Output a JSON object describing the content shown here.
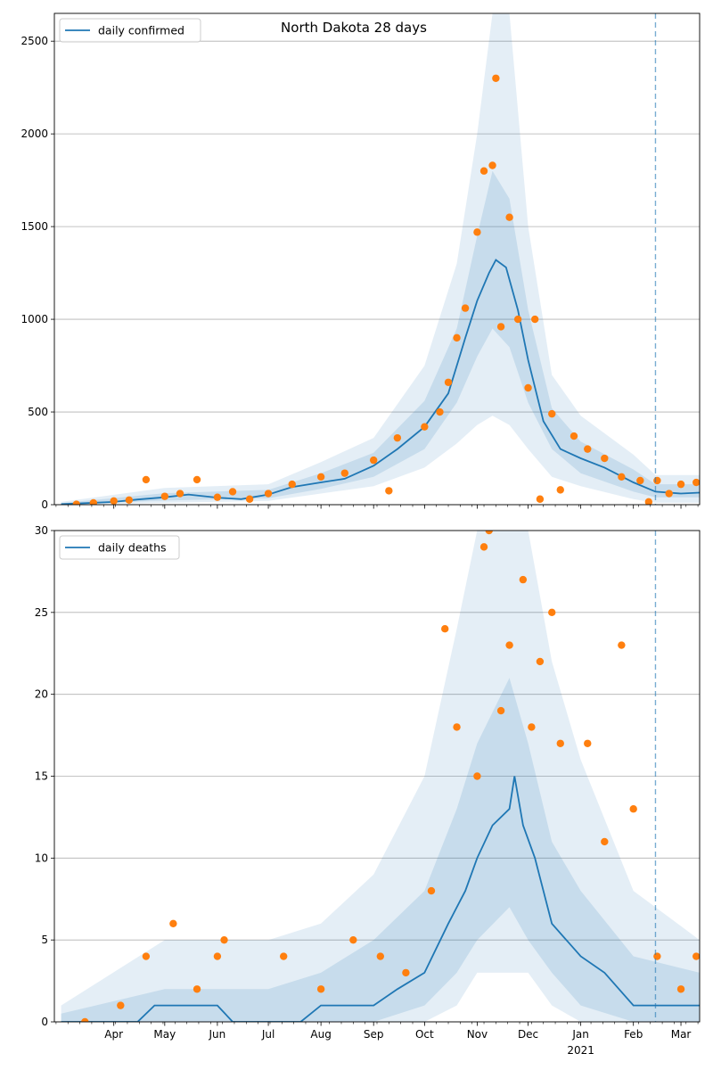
{
  "title": "North Dakota 28 days",
  "colors": {
    "model_line": "#1f77b4",
    "observed_points": "#ff7f0e",
    "band": "#1f77b4",
    "grid": "#b0b0b0",
    "today_line": "#1f77b4"
  },
  "x_axis": {
    "range": [
      "2020-02-26",
      "2021-03-12"
    ],
    "month_ticks": [
      {
        "label": "Apr",
        "date": "2020-04-01"
      },
      {
        "label": "May",
        "date": "2020-05-01"
      },
      {
        "label": "Jun",
        "date": "2020-06-01"
      },
      {
        "label": "Jul",
        "date": "2020-07-01"
      },
      {
        "label": "Aug",
        "date": "2020-08-01"
      },
      {
        "label": "Sep",
        "date": "2020-09-01"
      },
      {
        "label": "Oct",
        "date": "2020-10-01"
      },
      {
        "label": "Nov",
        "date": "2020-11-01"
      },
      {
        "label": "Dec",
        "date": "2020-12-01"
      },
      {
        "label": "Jan",
        "date": "2021-01-01"
      },
      {
        "label": "Feb",
        "date": "2021-02-01"
      },
      {
        "label": "Mar",
        "date": "2021-03-01"
      }
    ],
    "year_label": "2021",
    "minor_ticks": "weekly",
    "vline_date": "2021-02-14"
  },
  "chart_data": [
    {
      "type": "line",
      "panel": "top",
      "legend": {
        "label": "daily confirmed",
        "position": "top-left"
      },
      "ylim": [
        0,
        2650
      ],
      "yticks": [
        0,
        500,
        1000,
        1500,
        2000,
        2500
      ],
      "grid": "horizontal",
      "model_series": [
        {
          "date": "2020-03-01",
          "value": 3
        },
        {
          "date": "2020-03-15",
          "value": 8
        },
        {
          "date": "2020-04-01",
          "value": 15
        },
        {
          "date": "2020-04-15",
          "value": 28
        },
        {
          "date": "2020-05-01",
          "value": 40
        },
        {
          "date": "2020-05-15",
          "value": 55
        },
        {
          "date": "2020-06-01",
          "value": 38
        },
        {
          "date": "2020-06-15",
          "value": 30
        },
        {
          "date": "2020-07-01",
          "value": 55
        },
        {
          "date": "2020-07-15",
          "value": 95
        },
        {
          "date": "2020-08-01",
          "value": 120
        },
        {
          "date": "2020-08-15",
          "value": 140
        },
        {
          "date": "2020-09-01",
          "value": 210
        },
        {
          "date": "2020-09-15",
          "value": 300
        },
        {
          "date": "2020-10-01",
          "value": 420
        },
        {
          "date": "2020-10-15",
          "value": 600
        },
        {
          "date": "2020-10-25",
          "value": 900
        },
        {
          "date": "2020-11-01",
          "value": 1100
        },
        {
          "date": "2020-11-08",
          "value": 1250
        },
        {
          "date": "2020-11-12",
          "value": 1320
        },
        {
          "date": "2020-11-18",
          "value": 1280
        },
        {
          "date": "2020-11-25",
          "value": 1050
        },
        {
          "date": "2020-12-01",
          "value": 780
        },
        {
          "date": "2020-12-10",
          "value": 450
        },
        {
          "date": "2020-12-20",
          "value": 300
        },
        {
          "date": "2021-01-01",
          "value": 250
        },
        {
          "date": "2021-01-15",
          "value": 200
        },
        {
          "date": "2021-02-01",
          "value": 120
        },
        {
          "date": "2021-02-14",
          "value": 70
        },
        {
          "date": "2021-03-01",
          "value": 60
        },
        {
          "date": "2021-03-12",
          "value": 65
        }
      ],
      "observed": [
        {
          "date": "2020-03-10",
          "value": 2
        },
        {
          "date": "2020-03-20",
          "value": 10
        },
        {
          "date": "2020-04-01",
          "value": 20
        },
        {
          "date": "2020-04-10",
          "value": 25
        },
        {
          "date": "2020-04-20",
          "value": 135
        },
        {
          "date": "2020-05-01",
          "value": 45
        },
        {
          "date": "2020-05-10",
          "value": 60
        },
        {
          "date": "2020-05-20",
          "value": 135
        },
        {
          "date": "2020-06-01",
          "value": 40
        },
        {
          "date": "2020-06-10",
          "value": 70
        },
        {
          "date": "2020-06-20",
          "value": 30
        },
        {
          "date": "2020-07-01",
          "value": 60
        },
        {
          "date": "2020-07-15",
          "value": 110
        },
        {
          "date": "2020-08-01",
          "value": 150
        },
        {
          "date": "2020-08-15",
          "value": 170
        },
        {
          "date": "2020-09-01",
          "value": 240
        },
        {
          "date": "2020-09-10",
          "value": 75
        },
        {
          "date": "2020-09-15",
          "value": 360
        },
        {
          "date": "2020-10-01",
          "value": 420
        },
        {
          "date": "2020-10-10",
          "value": 500
        },
        {
          "date": "2020-10-15",
          "value": 660
        },
        {
          "date": "2020-10-20",
          "value": 900
        },
        {
          "date": "2020-10-25",
          "value": 1060
        },
        {
          "date": "2020-11-01",
          "value": 1470
        },
        {
          "date": "2020-11-05",
          "value": 1800
        },
        {
          "date": "2020-11-10",
          "value": 1830
        },
        {
          "date": "2020-11-12",
          "value": 2300
        },
        {
          "date": "2020-11-15",
          "value": 960
        },
        {
          "date": "2020-11-20",
          "value": 1550
        },
        {
          "date": "2020-11-25",
          "value": 1000
        },
        {
          "date": "2020-12-01",
          "value": 630
        },
        {
          "date": "2020-12-05",
          "value": 1000
        },
        {
          "date": "2020-12-08",
          "value": 30
        },
        {
          "date": "2020-12-15",
          "value": 490
        },
        {
          "date": "2020-12-20",
          "value": 80
        },
        {
          "date": "2020-12-28",
          "value": 370
        },
        {
          "date": "2021-01-05",
          "value": 300
        },
        {
          "date": "2021-01-15",
          "value": 250
        },
        {
          "date": "2021-01-25",
          "value": 150
        },
        {
          "date": "2021-02-05",
          "value": 130
        },
        {
          "date": "2021-02-10",
          "value": 15
        },
        {
          "date": "2021-02-15",
          "value": 130
        },
        {
          "date": "2021-02-22",
          "value": 60
        },
        {
          "date": "2021-03-01",
          "value": 110
        },
        {
          "date": "2021-03-10",
          "value": 120
        }
      ],
      "bands": [
        {
          "name": "outer",
          "points": [
            {
              "date": "2020-03-01",
              "lo": 0,
              "hi": 15
            },
            {
              "date": "2020-05-01",
              "lo": 10,
              "hi": 90
            },
            {
              "date": "2020-07-01",
              "lo": 20,
              "hi": 110
            },
            {
              "date": "2020-08-01",
              "lo": 60,
              "hi": 230
            },
            {
              "date": "2020-09-01",
              "lo": 100,
              "hi": 360
            },
            {
              "date": "2020-10-01",
              "lo": 200,
              "hi": 750
            },
            {
              "date": "2020-10-20",
              "lo": 330,
              "hi": 1300
            },
            {
              "date": "2020-11-01",
              "lo": 430,
              "hi": 2000
            },
            {
              "date": "2020-11-10",
              "lo": 480,
              "hi": 2650
            },
            {
              "date": "2020-11-20",
              "lo": 430,
              "hi": 2650
            },
            {
              "date": "2020-12-01",
              "lo": 300,
              "hi": 1500
            },
            {
              "date": "2020-12-15",
              "lo": 150,
              "hi": 700
            },
            {
              "date": "2021-01-01",
              "lo": 100,
              "hi": 480
            },
            {
              "date": "2021-02-01",
              "lo": 30,
              "hi": 270
            },
            {
              "date": "2021-02-14",
              "lo": 10,
              "hi": 160
            },
            {
              "date": "2021-03-12",
              "lo": 10,
              "hi": 160
            }
          ]
        },
        {
          "name": "inner",
          "points": [
            {
              "date": "2020-03-01",
              "lo": 1,
              "hi": 8
            },
            {
              "date": "2020-05-01",
              "lo": 22,
              "hi": 62
            },
            {
              "date": "2020-07-01",
              "lo": 35,
              "hi": 80
            },
            {
              "date": "2020-08-01",
              "lo": 85,
              "hi": 170
            },
            {
              "date": "2020-09-01",
              "lo": 150,
              "hi": 280
            },
            {
              "date": "2020-10-01",
              "lo": 300,
              "hi": 560
            },
            {
              "date": "2020-10-20",
              "lo": 550,
              "hi": 950
            },
            {
              "date": "2020-11-01",
              "lo": 800,
              "hi": 1450
            },
            {
              "date": "2020-11-10",
              "lo": 950,
              "hi": 1800
            },
            {
              "date": "2020-11-20",
              "lo": 850,
              "hi": 1650
            },
            {
              "date": "2020-12-01",
              "lo": 550,
              "hi": 1050
            },
            {
              "date": "2020-12-15",
              "lo": 300,
              "hi": 520
            },
            {
              "date": "2021-01-01",
              "lo": 170,
              "hi": 340
            },
            {
              "date": "2021-02-01",
              "lo": 70,
              "hi": 190
            },
            {
              "date": "2021-02-14",
              "lo": 40,
              "hi": 110
            },
            {
              "date": "2021-03-12",
              "lo": 40,
              "hi": 110
            }
          ]
        }
      ]
    },
    {
      "type": "line",
      "panel": "bottom",
      "legend": {
        "label": "daily deaths",
        "position": "top-left"
      },
      "ylim": [
        0,
        30
      ],
      "yticks": [
        0,
        5,
        10,
        15,
        20,
        25,
        30
      ],
      "grid": "horizontal",
      "model_series": [
        {
          "date": "2020-03-01",
          "value": 0
        },
        {
          "date": "2020-04-15",
          "value": 0
        },
        {
          "date": "2020-04-25",
          "value": 1
        },
        {
          "date": "2020-05-10",
          "value": 1
        },
        {
          "date": "2020-05-20",
          "value": 1
        },
        {
          "date": "2020-06-01",
          "value": 1
        },
        {
          "date": "2020-06-10",
          "value": 0
        },
        {
          "date": "2020-07-20",
          "value": 0
        },
        {
          "date": "2020-08-01",
          "value": 1
        },
        {
          "date": "2020-09-01",
          "value": 1
        },
        {
          "date": "2020-09-15",
          "value": 2
        },
        {
          "date": "2020-10-01",
          "value": 3
        },
        {
          "date": "2020-10-15",
          "value": 6
        },
        {
          "date": "2020-10-25",
          "value": 8
        },
        {
          "date": "2020-11-01",
          "value": 10
        },
        {
          "date": "2020-11-10",
          "value": 12
        },
        {
          "date": "2020-11-20",
          "value": 13
        },
        {
          "date": "2020-11-23",
          "value": 15
        },
        {
          "date": "2020-11-28",
          "value": 12
        },
        {
          "date": "2020-12-05",
          "value": 10
        },
        {
          "date": "2020-12-15",
          "value": 6
        },
        {
          "date": "2021-01-01",
          "value": 4
        },
        {
          "date": "2021-01-15",
          "value": 3
        },
        {
          "date": "2021-02-01",
          "value": 1
        },
        {
          "date": "2021-03-12",
          "value": 1
        }
      ],
      "observed": [
        {
          "date": "2020-03-15",
          "value": 0
        },
        {
          "date": "2020-04-05",
          "value": 1
        },
        {
          "date": "2020-04-20",
          "value": 4
        },
        {
          "date": "2020-05-06",
          "value": 6
        },
        {
          "date": "2020-05-20",
          "value": 2
        },
        {
          "date": "2020-06-01",
          "value": 4
        },
        {
          "date": "2020-06-05",
          "value": 5
        },
        {
          "date": "2020-07-10",
          "value": 4
        },
        {
          "date": "2020-08-01",
          "value": 2
        },
        {
          "date": "2020-08-20",
          "value": 5
        },
        {
          "date": "2020-09-05",
          "value": 4
        },
        {
          "date": "2020-09-20",
          "value": 3
        },
        {
          "date": "2020-10-05",
          "value": 8
        },
        {
          "date": "2020-10-13",
          "value": 24
        },
        {
          "date": "2020-10-20",
          "value": 18
        },
        {
          "date": "2020-11-01",
          "value": 15
        },
        {
          "date": "2020-11-05",
          "value": 29
        },
        {
          "date": "2020-11-08",
          "value": 30
        },
        {
          "date": "2020-11-15",
          "value": 19
        },
        {
          "date": "2020-11-20",
          "value": 23
        },
        {
          "date": "2020-11-28",
          "value": 27
        },
        {
          "date": "2020-12-03",
          "value": 18
        },
        {
          "date": "2020-12-08",
          "value": 22
        },
        {
          "date": "2020-12-15",
          "value": 25
        },
        {
          "date": "2020-12-20",
          "value": 17
        },
        {
          "date": "2021-01-05",
          "value": 17
        },
        {
          "date": "2021-01-15",
          "value": 11
        },
        {
          "date": "2021-01-25",
          "value": 23
        },
        {
          "date": "2021-02-01",
          "value": 13
        },
        {
          "date": "2021-02-15",
          "value": 4
        },
        {
          "date": "2021-03-01",
          "value": 2
        },
        {
          "date": "2021-03-10",
          "value": 4
        }
      ],
      "bands": [
        {
          "name": "outer",
          "points": [
            {
              "date": "2020-03-01",
              "lo": 0,
              "hi": 1
            },
            {
              "date": "2020-05-01",
              "lo": 0,
              "hi": 5
            },
            {
              "date": "2020-07-01",
              "lo": 0,
              "hi": 5
            },
            {
              "date": "2020-08-01",
              "lo": 0,
              "hi": 6
            },
            {
              "date": "2020-09-01",
              "lo": 0,
              "hi": 9
            },
            {
              "date": "2020-10-01",
              "lo": 0,
              "hi": 15
            },
            {
              "date": "2020-10-20",
              "lo": 1,
              "hi": 24
            },
            {
              "date": "2020-11-01",
              "lo": 3,
              "hi": 30
            },
            {
              "date": "2020-12-01",
              "lo": 3,
              "hi": 30
            },
            {
              "date": "2020-12-15",
              "lo": 1,
              "hi": 22
            },
            {
              "date": "2021-01-01",
              "lo": 0,
              "hi": 16
            },
            {
              "date": "2021-02-01",
              "lo": 0,
              "hi": 8
            },
            {
              "date": "2021-03-12",
              "lo": 0,
              "hi": 5
            }
          ]
        },
        {
          "name": "inner",
          "points": [
            {
              "date": "2020-03-01",
              "lo": 0,
              "hi": 0.5
            },
            {
              "date": "2020-05-01",
              "lo": 0,
              "hi": 2
            },
            {
              "date": "2020-07-01",
              "lo": 0,
              "hi": 2
            },
            {
              "date": "2020-08-01",
              "lo": 0,
              "hi": 3
            },
            {
              "date": "2020-09-01",
              "lo": 0,
              "hi": 5
            },
            {
              "date": "2020-10-01",
              "lo": 1,
              "hi": 8
            },
            {
              "date": "2020-10-20",
              "lo": 3,
              "hi": 13
            },
            {
              "date": "2020-11-01",
              "lo": 5,
              "hi": 17
            },
            {
              "date": "2020-11-20",
              "lo": 7,
              "hi": 21
            },
            {
              "date": "2020-12-01",
              "lo": 5,
              "hi": 17
            },
            {
              "date": "2020-12-15",
              "lo": 3,
              "hi": 11
            },
            {
              "date": "2021-01-01",
              "lo": 1,
              "hi": 8
            },
            {
              "date": "2021-02-01",
              "lo": 0,
              "hi": 4
            },
            {
              "date": "2021-03-12",
              "lo": 0,
              "hi": 3
            }
          ]
        }
      ]
    }
  ]
}
